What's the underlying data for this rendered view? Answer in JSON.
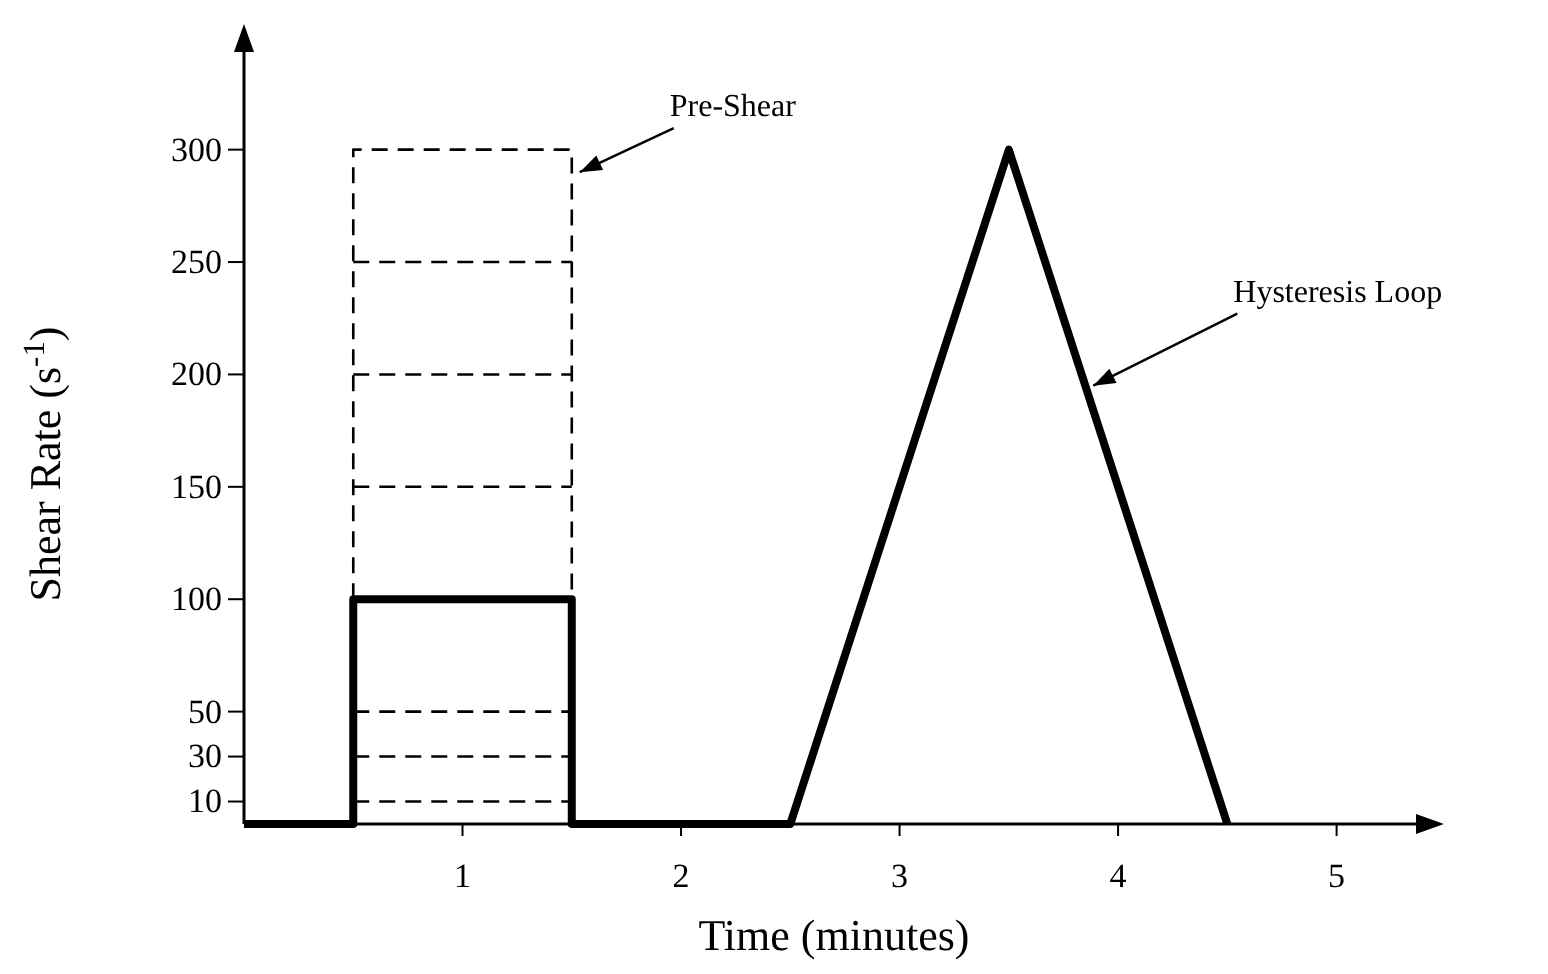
{
  "chart_data": {
    "type": "line",
    "xlabel": "Time (minutes)",
    "ylabel": "Shear Rate (s$^{-1}$)",
    "xlim": [
      0,
      5.4
    ],
    "ylim": [
      0,
      347
    ],
    "xticks": [
      1,
      2,
      3,
      4,
      5
    ],
    "yticks": [
      10,
      30,
      50,
      100,
      150,
      200,
      250,
      300
    ],
    "grid": false,
    "marker": "none",
    "series": [
      {
        "color": "#000000",
        "line_style": "solid",
        "x": [
          0,
          0.5,
          0.5,
          1.5,
          1.5,
          2.5,
          3.5,
          4.5
        ],
        "values": [
          0,
          0,
          100,
          100,
          0,
          0,
          300,
          0
        ]
      },
      {
        "color": "#000000",
        "line_style": "dashed",
        "x": [
          0.5,
          0.5,
          1.5,
          1.5
        ],
        "values": [
          100,
          300,
          300,
          100
        ]
      },
      {
        "color": "#000000",
        "line_style": "dashed",
        "x": [
          0.5,
          1.5
        ],
        "values": [
          250,
          250
        ]
      },
      {
        "color": "#000000",
        "line_style": "dashed",
        "x": [
          0.5,
          1.5
        ],
        "values": [
          200,
          200
        ]
      },
      {
        "color": "#000000",
        "line_style": "dashed",
        "x": [
          0.5,
          1.5
        ],
        "values": [
          150,
          150
        ]
      },
      {
        "color": "#000000",
        "line_style": "dashed",
        "x": [
          0.5,
          1.5
        ],
        "values": [
          50,
          50
        ]
      },
      {
        "color": "#000000",
        "line_style": "dashed",
        "x": [
          0.5,
          1.5
        ],
        "values": [
          30,
          30
        ]
      },
      {
        "color": "#000000",
        "line_style": "dashed",
        "x": [
          0.5,
          1.5
        ],
        "values": [
          10,
          10
        ]
      }
    ],
    "annotations": [
      {
        "text": "Pre-Shear",
        "x": 1.5,
        "y": 290
      },
      {
        "text": "Hysteresis Loop",
        "x": 3.85,
        "y": 195
      }
    ]
  }
}
